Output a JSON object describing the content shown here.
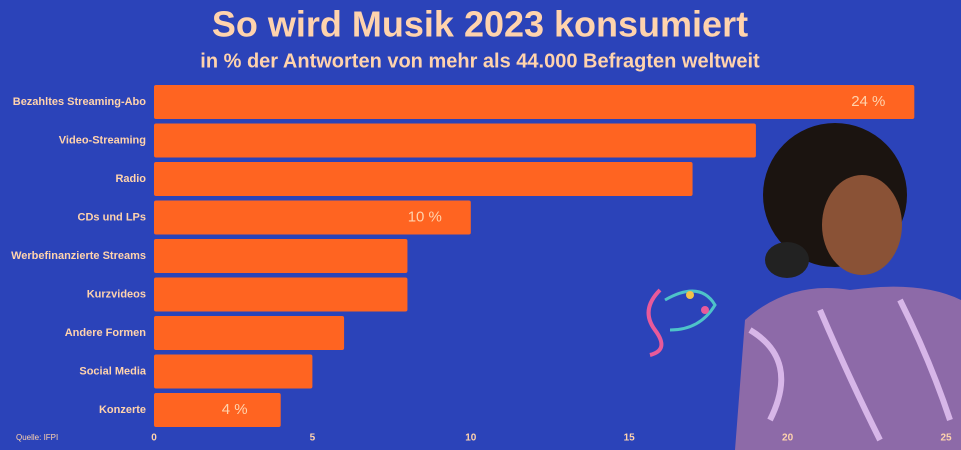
{
  "chart_data": {
    "type": "bar",
    "orientation": "horizontal",
    "title": "So wird Musik 2023 konsumiert",
    "subtitle": "in % der Antworten von mehr als 44.000 Befragten weltweit",
    "source": "Quelle: IFPI",
    "categories": [
      "Bezahltes Streaming-Abo",
      "Video-Streaming",
      "Radio",
      "CDs und LPs",
      "Werbefinanzierte Streams",
      "Kurzvideos",
      "Andere Formen",
      "Social Media",
      "Konzerte"
    ],
    "values": [
      24,
      19,
      17,
      10,
      8,
      8,
      6,
      5,
      4
    ],
    "value_labels": [
      "24 %",
      null,
      null,
      "10 %",
      null,
      null,
      null,
      null,
      "4 %"
    ],
    "color": "#ff6421",
    "xlim": [
      0,
      25
    ],
    "xticks": [
      0,
      5,
      10,
      15,
      20,
      25
    ],
    "grid": false
  }
}
